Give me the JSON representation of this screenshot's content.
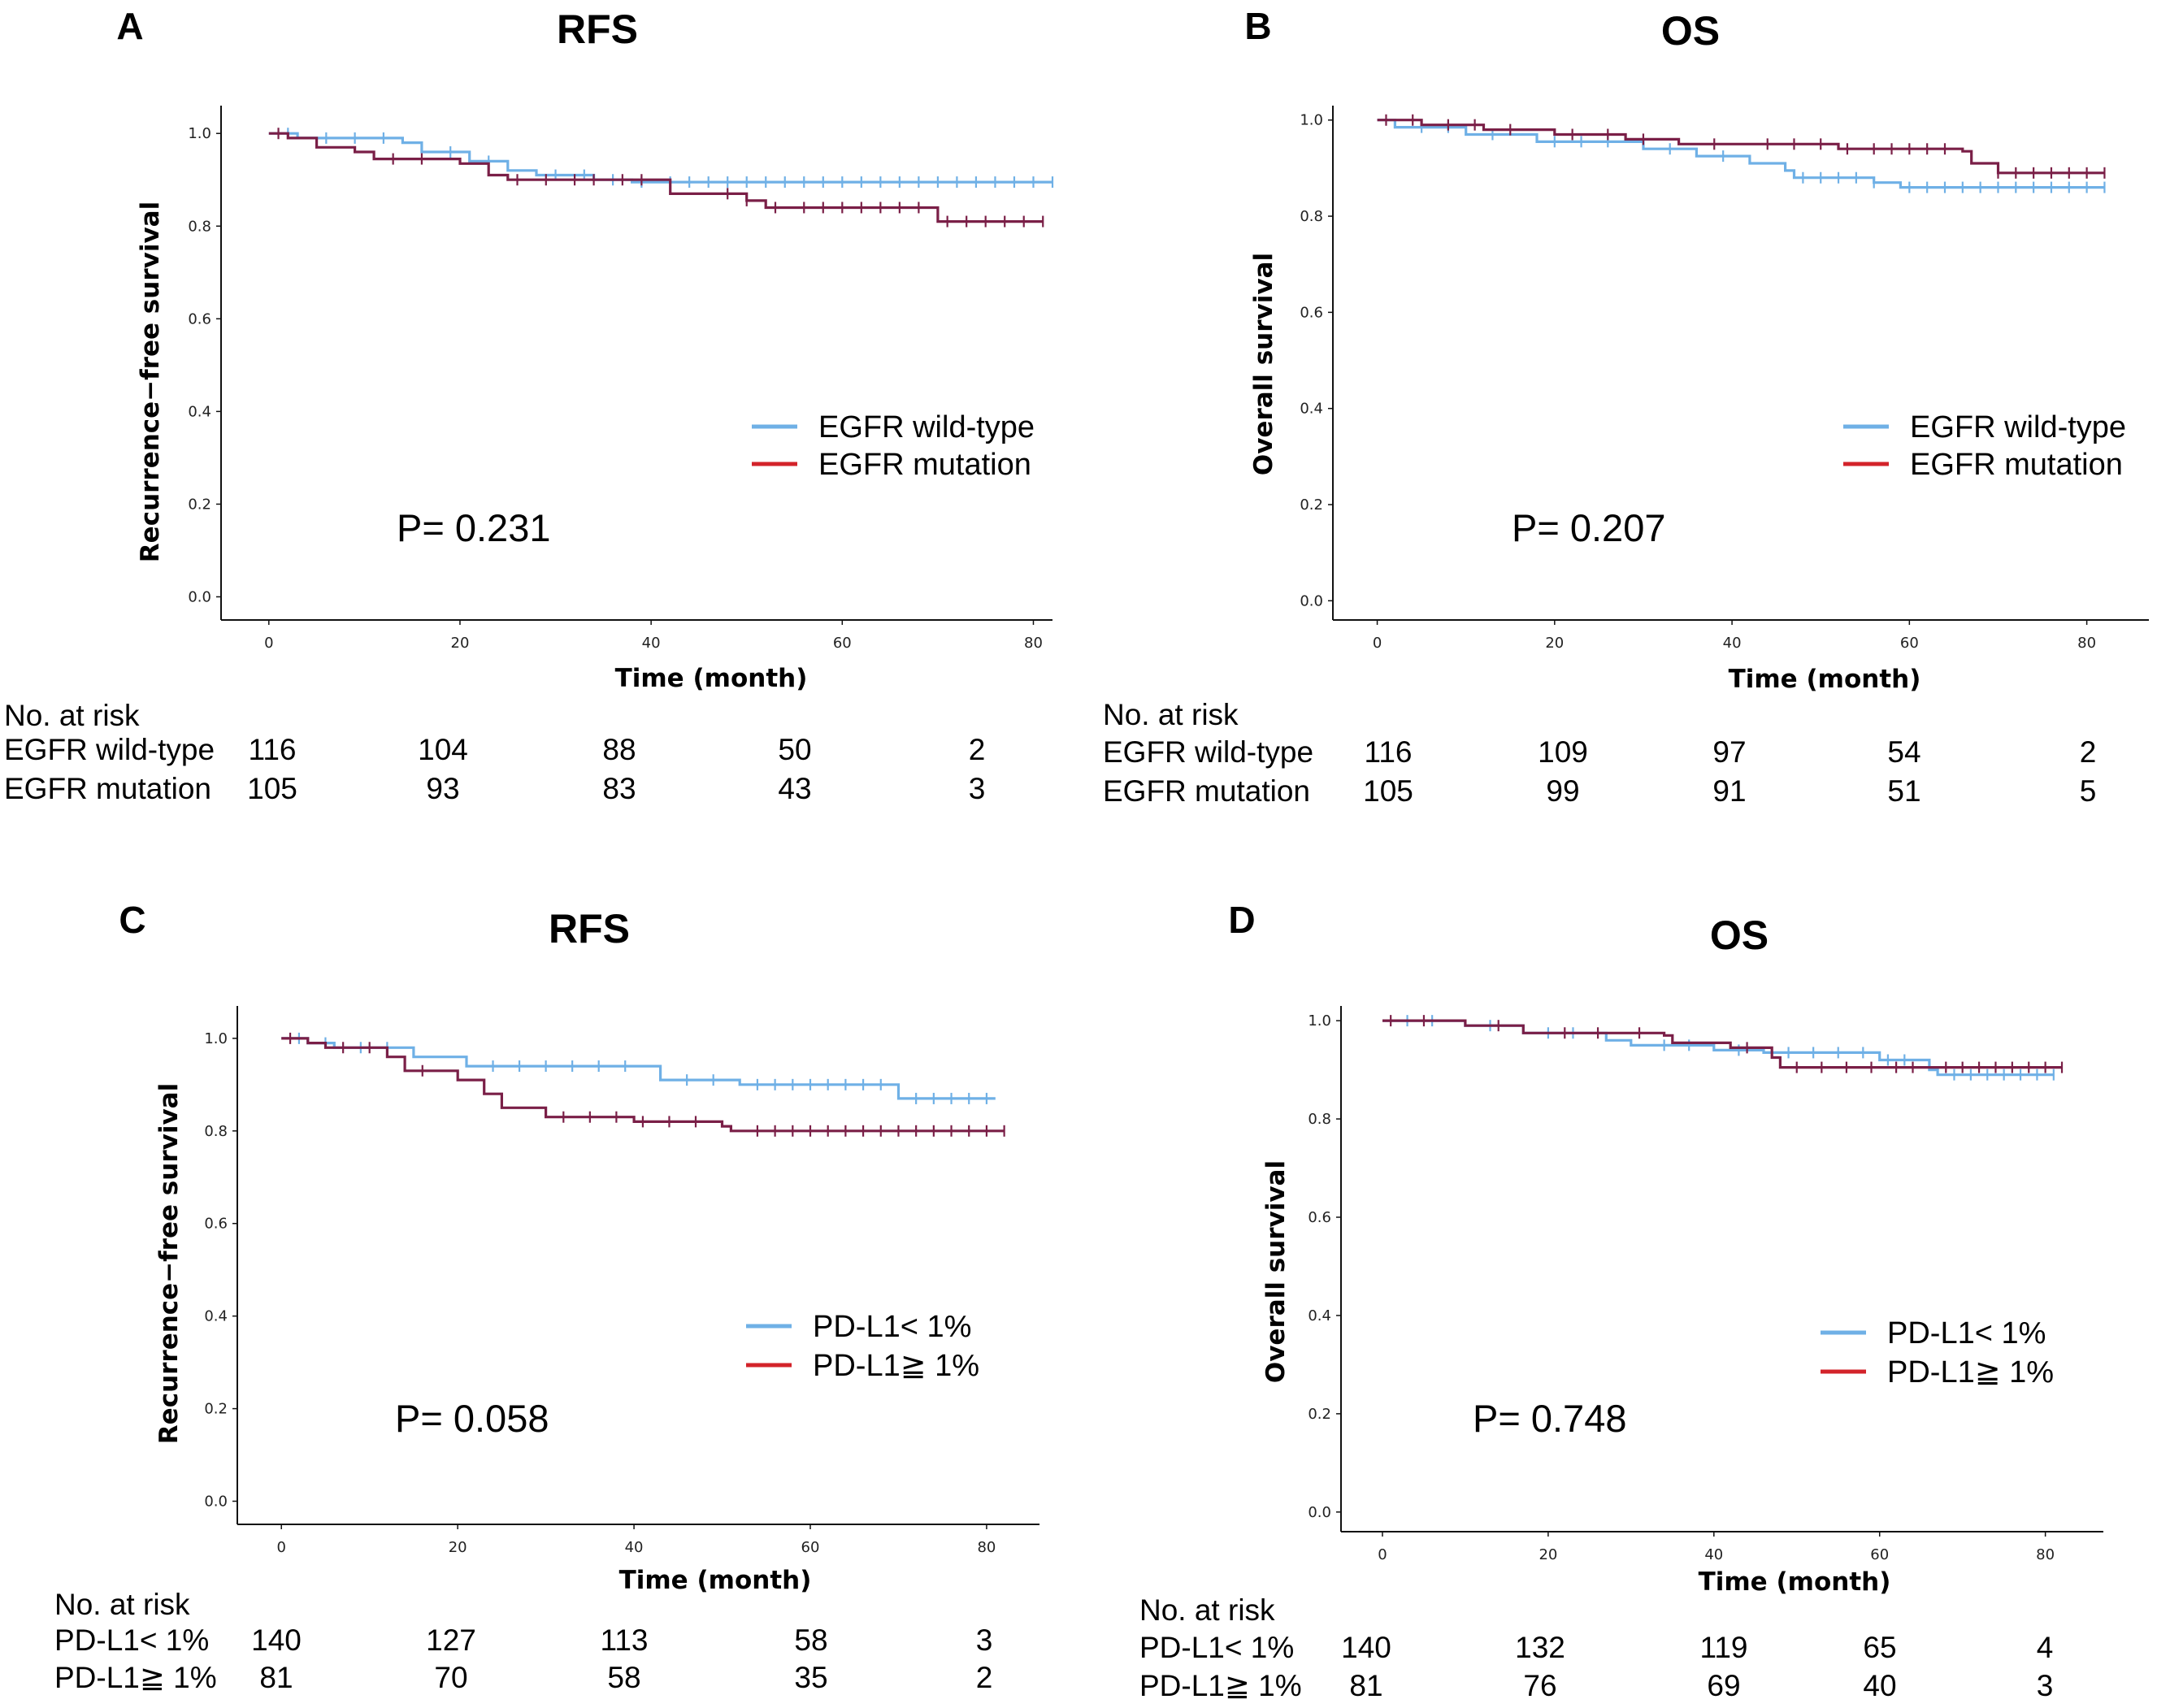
{
  "colors": {
    "series1": "#6fb0e6",
    "series2": "#7a1f47",
    "legend2": "#d3232a"
  },
  "chart_data": [
    {
      "type": "line",
      "panel": "A",
      "title": "RFS",
      "xlabel": "Time (month)",
      "ylabel": "Recurrence−free survival",
      "xlim": [
        -5,
        82
      ],
      "ylim": [
        -0.05,
        1.06
      ],
      "xticks": [
        "0",
        "20",
        "40",
        "60",
        "80"
      ],
      "yticks": [
        "0.0",
        "0.2",
        "0.4",
        "0.6",
        "0.8",
        "1.0"
      ],
      "p_value": "P= 0.231",
      "series": [
        {
          "name": "EGFR wild-type",
          "points": [
            [
              0,
              1
            ],
            [
              3,
              0.99
            ],
            [
              14,
              0.98
            ],
            [
              16,
              0.96
            ],
            [
              21,
              0.94
            ],
            [
              25,
              0.92
            ],
            [
              28,
              0.91
            ],
            [
              34,
              0.9
            ],
            [
              38,
              0.895
            ],
            [
              82,
              0.895
            ]
          ],
          "censors": [
            2,
            6,
            9,
            12,
            19,
            23,
            30,
            33,
            36,
            39,
            42,
            44,
            46,
            48,
            50,
            52,
            54,
            56,
            58,
            60,
            62,
            64,
            66,
            68,
            70,
            72,
            74,
            76,
            78,
            80,
            82
          ]
        },
        {
          "name": "EGFR mutation",
          "points": [
            [
              0,
              1
            ],
            [
              2,
              0.99
            ],
            [
              5,
              0.97
            ],
            [
              9,
              0.96
            ],
            [
              11,
              0.945
            ],
            [
              20,
              0.935
            ],
            [
              23,
              0.91
            ],
            [
              25,
              0.9
            ],
            [
              40,
              0.9
            ],
            [
              42,
              0.87
            ],
            [
              50,
              0.855
            ],
            [
              52,
              0.84
            ],
            [
              70,
              0.84
            ],
            [
              70,
              0.81
            ],
            [
              81,
              0.81
            ]
          ],
          "censors": [
            1,
            13,
            16,
            26,
            29,
            32,
            34,
            37,
            39,
            48,
            50,
            53,
            56,
            58,
            60,
            62,
            64,
            66,
            68,
            71,
            73,
            75,
            77,
            79,
            81
          ]
        }
      ],
      "risk": {
        "header": "No. at risk",
        "rows": [
          {
            "label": "EGFR wild-type",
            "values": [
              "116",
              "104",
              "88",
              "50",
              "2"
            ]
          },
          {
            "label": "EGFR mutation",
            "values": [
              "105",
              "93",
              "83",
              "43",
              "3"
            ]
          }
        ]
      }
    },
    {
      "type": "line",
      "panel": "B",
      "title": "OS",
      "xlabel": "Time (month)",
      "ylabel": "Overall survival",
      "xlim": [
        -5,
        87
      ],
      "ylim": [
        -0.04,
        1.03
      ],
      "xticks": [
        "0",
        "20",
        "40",
        "60",
        "80"
      ],
      "yticks": [
        "0.0",
        "0.2",
        "0.4",
        "0.6",
        "0.8",
        "1.0"
      ],
      "p_value": "P= 0.207",
      "series": [
        {
          "name": "EGFR wild-type",
          "points": [
            [
              0,
              1
            ],
            [
              2,
              0.985
            ],
            [
              10,
              0.97
            ],
            [
              18,
              0.955
            ],
            [
              30,
              0.94
            ],
            [
              36,
              0.925
            ],
            [
              42,
              0.91
            ],
            [
              46,
              0.895
            ],
            [
              47,
              0.88
            ],
            [
              56,
              0.87
            ],
            [
              59,
              0.86
            ],
            [
              82,
              0.86
            ]
          ],
          "censors": [
            5,
            8,
            13,
            20,
            23,
            26,
            33,
            39,
            48,
            50,
            52,
            54,
            56,
            60,
            62,
            64,
            66,
            68,
            70,
            72,
            74,
            76,
            78,
            80,
            82
          ]
        },
        {
          "name": "EGFR mutation",
          "points": [
            [
              0,
              1
            ],
            [
              5,
              0.99
            ],
            [
              12,
              0.98
            ],
            [
              20,
              0.97
            ],
            [
              28,
              0.96
            ],
            [
              34,
              0.95
            ],
            [
              52,
              0.94
            ],
            [
              66,
              0.935
            ],
            [
              67,
              0.91
            ],
            [
              70,
              0.89
            ],
            [
              82,
              0.89
            ]
          ],
          "censors": [
            1,
            4,
            8,
            11,
            15,
            22,
            26,
            30,
            38,
            44,
            47,
            50,
            53,
            56,
            58,
            60,
            62,
            64,
            70,
            72,
            74,
            76,
            78,
            80,
            82
          ]
        }
      ],
      "risk": {
        "header": "No. at risk",
        "rows": [
          {
            "label": "EGFR wild-type",
            "values": [
              "116",
              "109",
              "97",
              "54",
              "2"
            ]
          },
          {
            "label": "EGFR mutation",
            "values": [
              "105",
              "99",
              "91",
              "51",
              "5"
            ]
          }
        ]
      }
    },
    {
      "type": "line",
      "panel": "C",
      "title": "RFS",
      "xlabel": "Time (month)",
      "ylabel": "Recurrence−free survival",
      "xlim": [
        -5,
        86
      ],
      "ylim": [
        -0.05,
        1.07
      ],
      "xticks": [
        "0",
        "20",
        "40",
        "60",
        "80"
      ],
      "yticks": [
        "0.0",
        "0.2",
        "0.4",
        "0.6",
        "0.8",
        "1.0"
      ],
      "p_value": "P= 0.058",
      "series": [
        {
          "name": "PD-L1< 1%",
          "points": [
            [
              0,
              1
            ],
            [
              3,
              0.99
            ],
            [
              6,
              0.98
            ],
            [
              15,
              0.96
            ],
            [
              21,
              0.94
            ],
            [
              42,
              0.94
            ],
            [
              43,
              0.91
            ],
            [
              52,
              0.9
            ],
            [
              70,
              0.9
            ],
            [
              70,
              0.87
            ],
            [
              81,
              0.87
            ]
          ],
          "censors": [
            2,
            5,
            9,
            12,
            24,
            27,
            30,
            33,
            36,
            39,
            46,
            49,
            54,
            56,
            58,
            60,
            62,
            64,
            66,
            68,
            72,
            74,
            76,
            78,
            80
          ]
        },
        {
          "name": "PD-L1≧ 1%",
          "points": [
            [
              0,
              1
            ],
            [
              3,
              0.99
            ],
            [
              5,
              0.98
            ],
            [
              12,
              0.96
            ],
            [
              14,
              0.93
            ],
            [
              20,
              0.91
            ],
            [
              23,
              0.88
            ],
            [
              25,
              0.85
            ],
            [
              30,
              0.83
            ],
            [
              40,
              0.82
            ],
            [
              50,
              0.81
            ],
            [
              51,
              0.8
            ],
            [
              82,
              0.8
            ]
          ],
          "censors": [
            1,
            7,
            10,
            16,
            32,
            35,
            38,
            41,
            44,
            47,
            54,
            56,
            58,
            60,
            62,
            64,
            66,
            68,
            70,
            72,
            74,
            76,
            78,
            80,
            82
          ]
        }
      ],
      "risk": {
        "header": "No. at risk",
        "rows": [
          {
            "label": "PD-L1< 1%",
            "values": [
              "140",
              "127",
              "113",
              "58",
              "3"
            ]
          },
          {
            "label": "PD-L1≧ 1%",
            "values": [
              "81",
              "70",
              "58",
              "35",
              "2"
            ]
          }
        ]
      }
    },
    {
      "type": "line",
      "panel": "D",
      "title": "OS",
      "xlabel": "Time (month)",
      "ylabel": "Overall survival",
      "xlim": [
        -5,
        87
      ],
      "ylim": [
        -0.04,
        1.03
      ],
      "xticks": [
        "0",
        "20",
        "40",
        "60",
        "80"
      ],
      "yticks": [
        "0.0",
        "0.2",
        "0.4",
        "0.6",
        "0.8",
        "1.0"
      ],
      "p_value": "P= 0.748",
      "series": [
        {
          "name": "PD-L1< 1%",
          "points": [
            [
              0,
              1
            ],
            [
              10,
              0.99
            ],
            [
              17,
              0.975
            ],
            [
              27,
              0.96
            ],
            [
              30,
              0.95
            ],
            [
              40,
              0.94
            ],
            [
              46,
              0.935
            ],
            [
              60,
              0.92
            ],
            [
              66,
              0.9
            ],
            [
              67,
              0.89
            ],
            [
              81,
              0.89
            ]
          ],
          "censors": [
            3,
            6,
            13,
            20,
            23,
            34,
            37,
            43,
            49,
            52,
            55,
            58,
            61,
            63,
            69,
            71,
            73,
            75,
            77,
            79,
            81
          ]
        },
        {
          "name": "PD-L1≧ 1%",
          "points": [
            [
              0,
              1
            ],
            [
              10,
              0.99
            ],
            [
              17,
              0.975
            ],
            [
              34,
              0.97
            ],
            [
              35,
              0.955
            ],
            [
              42,
              0.945
            ],
            [
              47,
              0.925
            ],
            [
              48,
              0.905
            ],
            [
              66,
              0.905
            ],
            [
              82,
              0.905
            ]
          ],
          "censors": [
            1,
            5,
            14,
            22,
            26,
            31,
            44,
            50,
            53,
            56,
            59,
            62,
            64,
            68,
            70,
            72,
            74,
            76,
            78,
            80,
            82
          ]
        }
      ],
      "risk": {
        "header": "No. at risk",
        "rows": [
          {
            "label": "PD-L1< 1%",
            "values": [
              "140",
              "132",
              "119",
              "65",
              "4"
            ]
          },
          {
            "label": "PD-L1≧ 1%",
            "values": [
              "81",
              "76",
              "69",
              "40",
              "3"
            ]
          }
        ]
      }
    }
  ]
}
